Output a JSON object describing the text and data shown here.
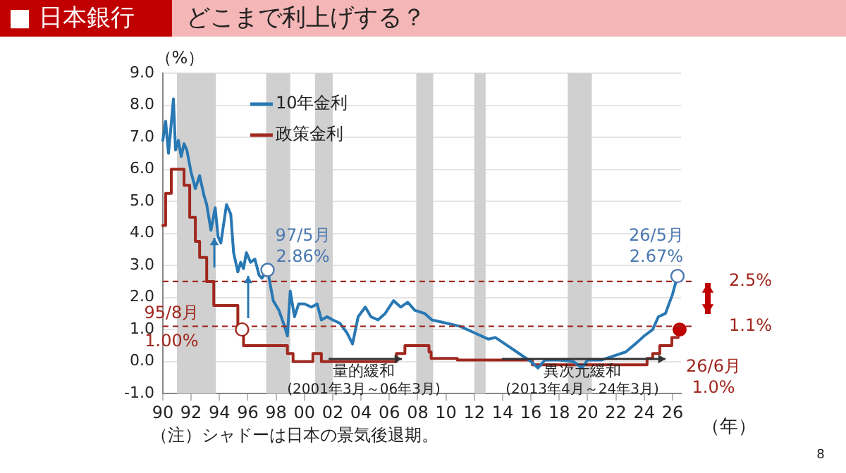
{
  "chart_data": {
    "type": "line",
    "title": "どこまで利上げする？",
    "subtitle": "■ 日本銀行",
    "ylabel": "（%）",
    "xlabel": "（年）",
    "xlim": [
      1990,
      2026.6
    ],
    "xticks": [
      {
        "value": 1990,
        "label": "90"
      },
      {
        "value": 1992,
        "label": "92"
      },
      {
        "value": 1994,
        "label": "94"
      },
      {
        "value": 1996,
        "label": "96"
      },
      {
        "value": 1998,
        "label": "98"
      },
      {
        "value": 2000,
        "label": "00"
      },
      {
        "value": 2002,
        "label": "02"
      },
      {
        "value": 2004,
        "label": "04"
      },
      {
        "value": 2006,
        "label": "06"
      },
      {
        "value": 2008,
        "label": "08"
      },
      {
        "value": 2010,
        "label": "10"
      },
      {
        "value": 2012,
        "label": "12"
      },
      {
        "value": 2014,
        "label": "14"
      },
      {
        "value": 2016,
        "label": "16"
      },
      {
        "value": 2018,
        "label": "18"
      },
      {
        "value": 2020,
        "label": "20"
      },
      {
        "value": 2022,
        "label": "22"
      },
      {
        "value": 2024,
        "label": "24"
      },
      {
        "value": 2026,
        "label": "26"
      }
    ],
    "ylim": [
      -1,
      9
    ],
    "yticks": [
      {
        "value": -1,
        "label": "-1.0"
      },
      {
        "value": 0,
        "label": "0.0"
      },
      {
        "value": 1,
        "label": "1.0"
      },
      {
        "value": 2,
        "label": "2.0"
      },
      {
        "value": 3,
        "label": "3.0"
      },
      {
        "value": 4,
        "label": "4.0"
      },
      {
        "value": 5,
        "label": "5.0"
      },
      {
        "value": 6,
        "label": "6.0"
      },
      {
        "value": 7,
        "label": "7.0"
      },
      {
        "value": 8,
        "label": "8.0"
      },
      {
        "value": 9,
        "label": "9.0"
      }
    ],
    "grid": "y",
    "legend": "top left",
    "marker": "none",
    "line_style": "solid",
    "series": [
      {
        "name": "10年金利",
        "type": "line",
        "color": "#2878b4",
        "x": [
          1990.0,
          1990.2,
          1990.4,
          1990.55,
          1990.75,
          1990.9,
          1991.1,
          1991.3,
          1991.5,
          1991.7,
          1992.0,
          1992.3,
          1992.6,
          1992.9,
          1993.1,
          1993.4,
          1993.7,
          1993.9,
          1994.1,
          1994.3,
          1994.5,
          1994.8,
          1995.0,
          1995.3,
          1995.5,
          1995.7,
          1995.9,
          1996.2,
          1996.5,
          1996.8,
          1997.0,
          1997.4,
          1997.8,
          1998.2,
          1998.6,
          1998.8,
          1999.0,
          1999.3,
          1999.6,
          2000.0,
          2000.5,
          2000.9,
          2001.2,
          2001.6,
          2002.0,
          2002.5,
          2003.0,
          2003.4,
          2003.8,
          2004.3,
          2004.7,
          2005.2,
          2005.7,
          2006.3,
          2006.8,
          2007.3,
          2007.8,
          2008.5,
          2009.0,
          2010.0,
          2011.0,
          2012.0,
          2013.0,
          2013.5,
          2014.0,
          2015.0,
          2016.0,
          2016.5,
          2017.0,
          2018.0,
          2019.0,
          2019.6,
          2020.0,
          2021.0,
          2022.0,
          2022.7,
          2023.5,
          2024.0,
          2024.6,
          2025.0,
          2025.5,
          2026.0,
          2026.35
        ],
        "values": [
          6.9,
          7.5,
          6.5,
          7.2,
          8.2,
          6.6,
          6.9,
          6.4,
          6.8,
          6.6,
          5.9,
          5.4,
          5.8,
          5.2,
          4.9,
          4.1,
          4.8,
          3.9,
          3.7,
          4.3,
          4.9,
          4.6,
          3.4,
          2.8,
          3.1,
          2.9,
          3.4,
          3.1,
          3.2,
          2.7,
          2.6,
          2.86,
          1.9,
          1.6,
          1.1,
          0.8,
          2.2,
          1.4,
          1.8,
          1.8,
          1.7,
          1.8,
          1.3,
          1.4,
          1.3,
          1.2,
          0.9,
          0.55,
          1.4,
          1.7,
          1.4,
          1.3,
          1.5,
          1.9,
          1.7,
          1.85,
          1.6,
          1.5,
          1.3,
          1.2,
          1.1,
          0.9,
          0.7,
          0.75,
          0.6,
          0.3,
          0.0,
          -0.2,
          0.05,
          0.05,
          0.0,
          -0.2,
          0.05,
          0.05,
          0.2,
          0.3,
          0.6,
          0.8,
          1.0,
          1.4,
          1.5,
          2.1,
          2.67
        ]
      },
      {
        "name": "政策金利",
        "type": "step",
        "color": "#a0281e",
        "x": [
          1990.0,
          1990.2,
          1990.6,
          1991.5,
          1991.9,
          1992.3,
          1992.6,
          1993.1,
          1993.6,
          1995.3,
          1995.7,
          1998.8,
          1999.2,
          2000.6,
          2001.2,
          2006.5,
          2007.1,
          2008.8,
          2008.95,
          2010.8,
          2016.1,
          2024.2,
          2024.6,
          2025.1,
          2025.95,
          2026.4
        ],
        "values": [
          4.25,
          5.25,
          6.0,
          5.5,
          4.5,
          3.75,
          3.25,
          2.5,
          1.75,
          1.0,
          0.5,
          0.25,
          0.0,
          0.25,
          0.0,
          0.25,
          0.5,
          0.3,
          0.1,
          0.05,
          -0.1,
          0.1,
          0.25,
          0.5,
          0.75,
          0.75
        ]
      },
      {
        "type": "scatter",
        "marker": "circle",
        "color": "#c00000",
        "x": [
          2026.5
        ],
        "values": [
          1.0
        ]
      }
    ],
    "bands": [
      {
        "axis": "x",
        "from": 1991.0,
        "to": 1993.75,
        "color": "#d0d0d0"
      },
      {
        "axis": "x",
        "from": 1997.3,
        "to": 1999.0,
        "color": "#d0d0d0"
      },
      {
        "axis": "x",
        "from": 2000.75,
        "to": 2002.0,
        "color": "#d0d0d0"
      },
      {
        "axis": "x",
        "from": 2007.9,
        "to": 2009.1,
        "color": "#d0d0d0"
      },
      {
        "axis": "x",
        "from": 2012.0,
        "to": 2012.8,
        "color": "#d0d0d0"
      },
      {
        "axis": "x",
        "from": 2018.6,
        "to": 2020.3,
        "color": "#d0d0d0"
      }
    ],
    "ref_lines": [
      {
        "axis": "y",
        "value": 2.5,
        "label": "2.5%",
        "color": "#a0281e",
        "line_style": "dashed"
      },
      {
        "axis": "y",
        "value": 1.1,
        "label": "1.1%",
        "color": "#a0281e",
        "line_style": "dashed"
      }
    ],
    "annotations": [
      {
        "text": "97/5月 2.86%",
        "x": 1997.4,
        "y": 2.86
      },
      {
        "text": "95/8月 1.00%",
        "x": 1995.6,
        "y": 1.0
      },
      {
        "text": "26/5月 2.67%",
        "x": 2026.35,
        "y": 2.67
      },
      {
        "text": "26/6月 1.0%",
        "x": 2026.5,
        "y": 1.0
      },
      "量的緩和 (2001年3月～06年3月)",
      "異次元緩和 (2013年4月～24年3月)",
      "（注）シャドーは日本の景気後退期。",
      "8"
    ]
  }
}
